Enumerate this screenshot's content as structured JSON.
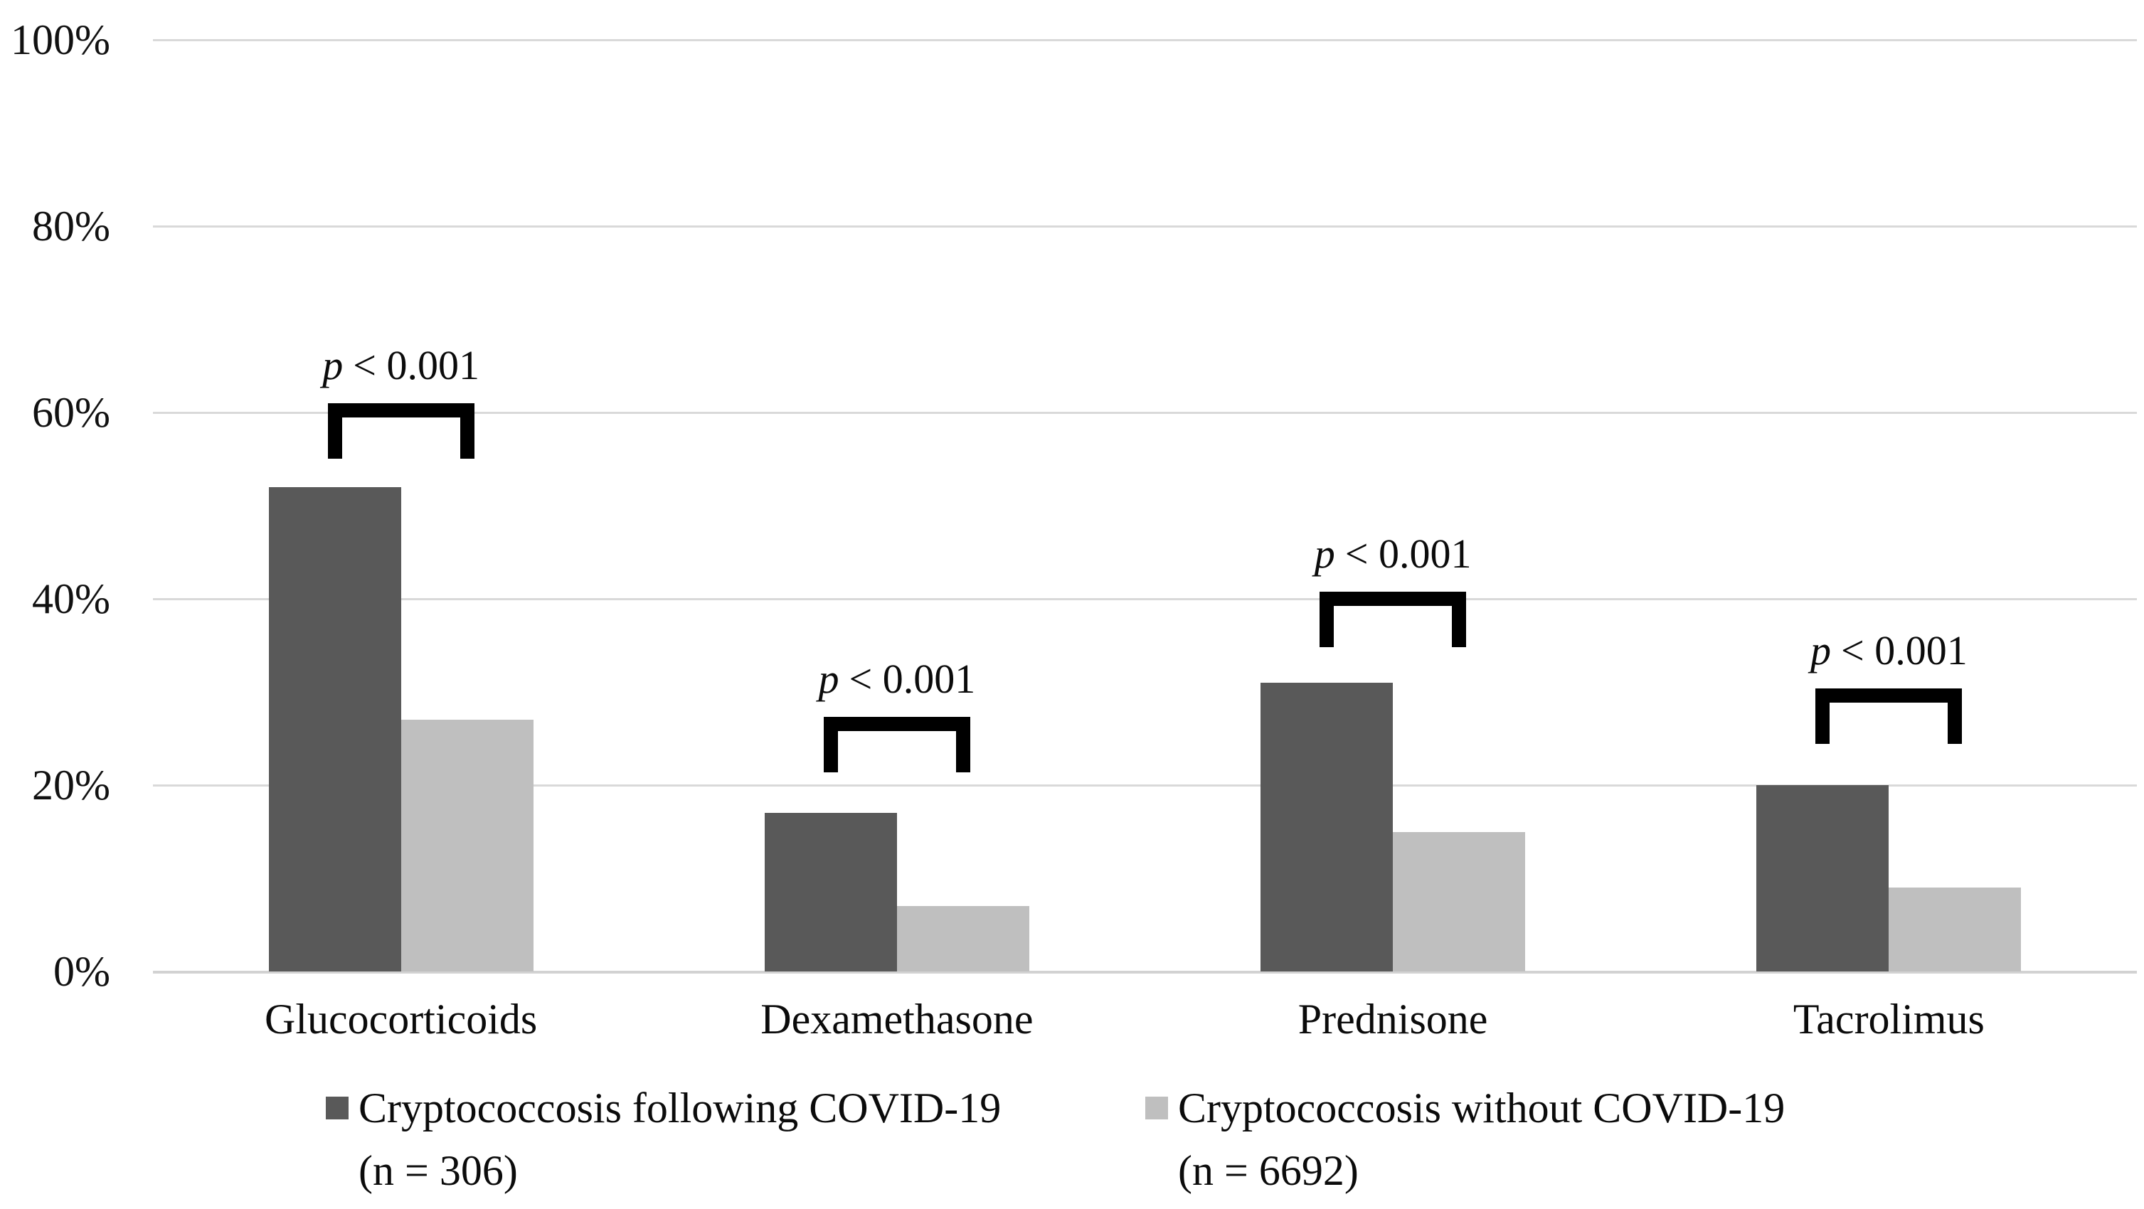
{
  "chart_data": {
    "type": "bar",
    "title": "",
    "xlabel": "",
    "ylabel": "",
    "ylim": [
      0,
      100
    ],
    "grid": true,
    "legend_position": "bottom",
    "categories": [
      "Glucocorticoids",
      "Dexamethasone",
      "Prednisone",
      "Tacrolimus"
    ],
    "series": [
      {
        "name": "Cryptococcosis following COVID-19 (n = 306)",
        "color": "#595959",
        "values": [
          52,
          17,
          31,
          20
        ]
      },
      {
        "name": "Cryptococcosis without COVID-19 (n = 6692)",
        "color": "#bfbfbf",
        "values": [
          27,
          7,
          15,
          9
        ]
      }
    ],
    "yticks": [
      {
        "label": "0%",
        "value": 0
      },
      {
        "label": "20%",
        "value": 20
      },
      {
        "label": "40%",
        "value": 40
      },
      {
        "label": "60%",
        "value": 60
      },
      {
        "label": "80%",
        "value": 80
      },
      {
        "label": "100%",
        "value": 100
      }
    ],
    "annotations": [
      {
        "category": "Glucocorticoids",
        "p_var": "p",
        "p_rest": "< 0.001",
        "bracket_top_pct": 61.0
      },
      {
        "category": "Dexamethasone",
        "p_var": "p",
        "p_rest": "< 0.001",
        "bracket_top_pct": 27.3
      },
      {
        "category": "Prednisone",
        "p_var": "p",
        "p_rest": "< 0.001",
        "bracket_top_pct": 40.8
      },
      {
        "category": "Tacrolimus",
        "p_var": "p",
        "p_rest": "< 0.001",
        "bracket_top_pct": 30.4
      }
    ],
    "legend": [
      {
        "line1": "Cryptococcosis following COVID-19",
        "line2": "(n = 306)",
        "color": "#595959"
      },
      {
        "line1": "Cryptococcosis without COVID-19",
        "line2": "(n = 6692)",
        "color": "#bfbfbf"
      }
    ],
    "colors": {
      "gridline": "#d9d9d9",
      "bracket": "#000000",
      "text": "#111111",
      "background": "#ffffff"
    }
  }
}
